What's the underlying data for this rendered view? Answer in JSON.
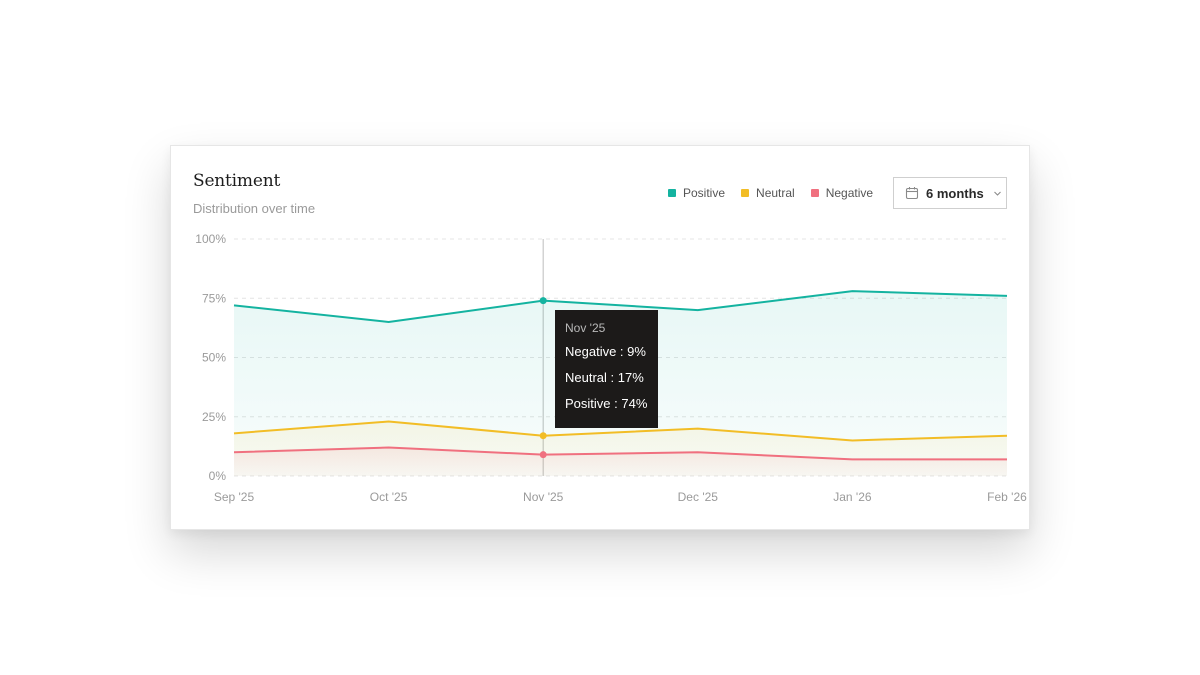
{
  "card": {
    "title": "Sentiment",
    "subtitle": "Distribution over time"
  },
  "legend": [
    {
      "label": "Positive",
      "color": "#14b3a0"
    },
    {
      "label": "Neutral",
      "color": "#f2bd26"
    },
    {
      "label": "Negative",
      "color": "#f0707f"
    }
  ],
  "range_select": {
    "label": "6 months",
    "icon": "calendar-icon",
    "chevron": "chevron-down-icon"
  },
  "tooltip": {
    "title": "Nov '25",
    "rows": [
      "Negative : 9%",
      "Neutral : 17%",
      "Positive : 74%"
    ]
  },
  "chart_data": {
    "type": "line",
    "x": [
      "Sep '25",
      "Oct '25",
      "Nov '25",
      "Dec '25",
      "Jan '26",
      "Feb '26"
    ],
    "series": [
      {
        "name": "Positive",
        "color": "#14b3a0",
        "values": [
          72,
          65,
          74,
          70,
          78,
          76
        ]
      },
      {
        "name": "Neutral",
        "color": "#f2bd26",
        "values": [
          18,
          23,
          17,
          20,
          15,
          17
        ]
      },
      {
        "name": "Negative",
        "color": "#f0707f",
        "values": [
          10,
          12,
          9,
          10,
          7,
          7
        ]
      }
    ],
    "y_ticks": [
      "0%",
      "25%",
      "50%",
      "75%",
      "100%"
    ],
    "ylim": [
      0,
      100
    ],
    "grid": true,
    "area_fill": true,
    "highlighted": "Nov '25"
  }
}
